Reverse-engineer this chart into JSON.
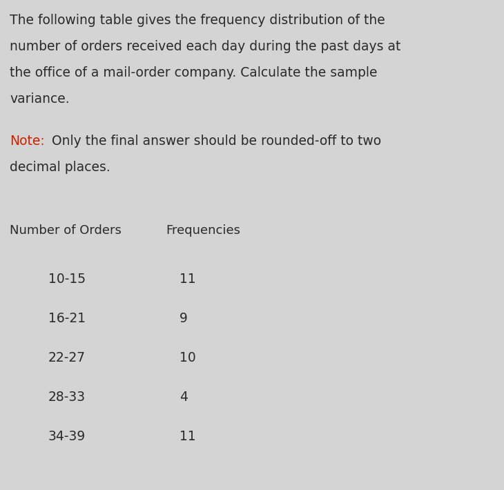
{
  "para_lines": [
    "The following table gives the frequency distribution of the",
    "number of orders received each day during the past days at",
    "the office of a mail-order company. Calculate the sample",
    "variance."
  ],
  "note_label": "Note:",
  "note_rest": " Only the final answer should be rounded-off to two",
  "note_line2": "decimal places.",
  "col1_header": "Number of Orders",
  "col2_header": "Frequencies",
  "rows": [
    {
      "orders": "10-15",
      "freq": "11"
    },
    {
      "orders": "16-21",
      "freq": "9"
    },
    {
      "orders": "22-27",
      "freq": "10"
    },
    {
      "orders": "28-33",
      "freq": "4"
    },
    {
      "orders": "34-39",
      "freq": "11"
    }
  ],
  "bg_color": "#d4d4d4",
  "text_color": "#2a2a2a",
  "note_color": "#cc2200",
  "para_fontsize": 13.5,
  "note_fontsize": 13.5,
  "header_fontsize": 13.0,
  "row_fontsize": 13.5,
  "fig_width": 7.3,
  "fig_height": 7.1,
  "dpi": 100
}
